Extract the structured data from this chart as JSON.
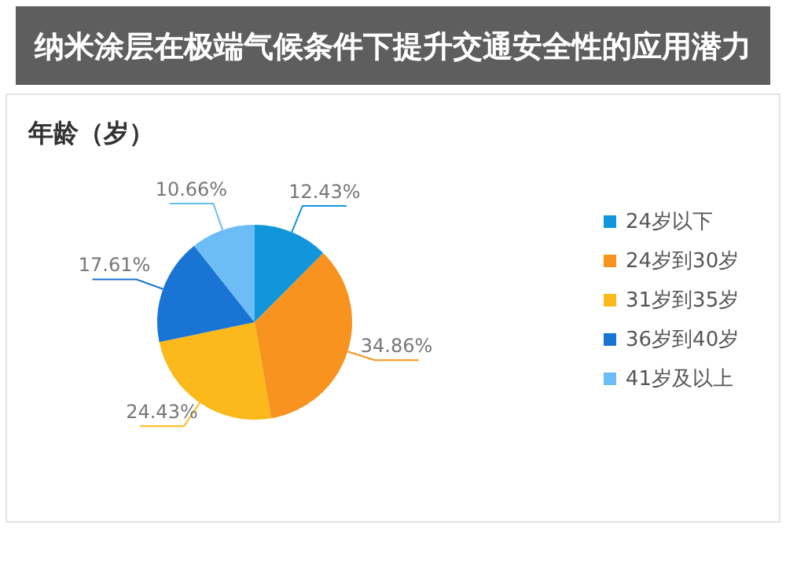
{
  "chart_data": {
    "type": "pie",
    "title": "年龄（岁）",
    "annotations": [
      "纳米涂层在极端气候条件下提升交通安全性的应用潜力"
    ],
    "categories": [
      "24岁以下",
      "24岁到30岁",
      "31岁到35岁",
      "36岁到40岁",
      "41岁及以上"
    ],
    "values": [
      12.43,
      34.86,
      24.43,
      17.61,
      10.66
    ],
    "colors": [
      "#1296db",
      "#f7931e",
      "#fbb91b",
      "#1a74d3",
      "#6cbcf5"
    ],
    "value_labels": [
      "12.43%",
      "34.86%",
      "24.43%",
      "17.61%",
      "10.66%"
    ],
    "legend": "right"
  }
}
